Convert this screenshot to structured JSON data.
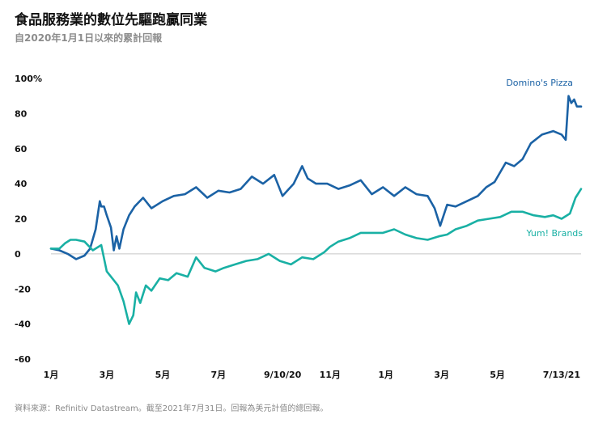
{
  "title": "食品服務業的數位先驅跑贏同業",
  "subtitle": "自2020年1月1日以來的累計回報",
  "source": "資料來源：Refinitiv Datastream。截至2021年7月31日。回報為美元計值的總回報。",
  "chart_data": {
    "type": "line",
    "y_tick_labels": [
      "100%",
      "80",
      "60",
      "40",
      "20",
      "0",
      "-20",
      "-40",
      "-60"
    ],
    "y_tick_values": [
      100,
      80,
      60,
      40,
      20,
      0,
      -20,
      -40,
      -60
    ],
    "ylim": [
      -60,
      100
    ],
    "xlim": [
      0,
      19
    ],
    "x_tick_labels": [
      "1月",
      "3月",
      "5月",
      "7月",
      "9/10/20",
      "11月",
      "1月",
      "3月",
      "5月",
      "7/13/21"
    ],
    "x_tick_positions": [
      0,
      2,
      4,
      6,
      8.3,
      10,
      12,
      14,
      16,
      18.3
    ],
    "x_unit": "months since 2020-01-01",
    "grid": false,
    "zero_line": true,
    "series": [
      {
        "name": "Domino's Pizza",
        "color": "#1b62a5",
        "x": [
          0,
          0.3,
          0.6,
          0.9,
          1.2,
          1.4,
          1.6,
          1.75,
          1.8,
          1.9,
          2.0,
          2.15,
          2.25,
          2.35,
          2.45,
          2.6,
          2.8,
          3.0,
          3.3,
          3.6,
          4.0,
          4.4,
          4.8,
          5.2,
          5.6,
          6.0,
          6.4,
          6.8,
          7.2,
          7.6,
          8.0,
          8.3,
          8.7,
          9.0,
          9.2,
          9.5,
          9.9,
          10.3,
          10.7,
          11.1,
          11.5,
          11.9,
          12.3,
          12.7,
          13.1,
          13.5,
          13.75,
          13.95,
          14.2,
          14.5,
          14.9,
          15.3,
          15.6,
          15.9,
          16.3,
          16.6,
          16.9,
          17.2,
          17.6,
          18.0,
          18.3,
          18.45,
          18.55,
          18.65,
          18.75,
          18.85,
          18.95,
          19.0
        ],
        "y": [
          3,
          2,
          0,
          -3,
          -1,
          3,
          14,
          30,
          27,
          27,
          22,
          15,
          2,
          10,
          3,
          14,
          22,
          27,
          32,
          26,
          30,
          33,
          34,
          38,
          32,
          36,
          35,
          37,
          44,
          40,
          45,
          33,
          40,
          50,
          43,
          40,
          40,
          37,
          39,
          42,
          34,
          38,
          33,
          38,
          34,
          33,
          26,
          16,
          28,
          27,
          30,
          33,
          38,
          41,
          52,
          50,
          54,
          63,
          68,
          70,
          68,
          65,
          90,
          86,
          88,
          84,
          84,
          84
        ]
      },
      {
        "name": "Yum! Brands",
        "color": "#19b0a4",
        "x": [
          0,
          0.3,
          0.5,
          0.7,
          0.9,
          1.2,
          1.5,
          1.8,
          2.0,
          2.2,
          2.4,
          2.6,
          2.8,
          2.95,
          3.05,
          3.2,
          3.4,
          3.6,
          3.9,
          4.2,
          4.5,
          4.9,
          5.2,
          5.5,
          5.9,
          6.2,
          6.6,
          7.0,
          7.4,
          7.8,
          8.2,
          8.6,
          9.0,
          9.4,
          9.8,
          10.0,
          10.3,
          10.7,
          11.1,
          11.5,
          11.9,
          12.3,
          12.7,
          13.1,
          13.5,
          13.9,
          14.2,
          14.5,
          14.9,
          15.3,
          15.7,
          16.1,
          16.5,
          16.9,
          17.3,
          17.7,
          18.0,
          18.3,
          18.6,
          18.8,
          19.0
        ],
        "y": [
          3,
          3,
          6,
          8,
          8,
          7,
          2,
          5,
          -10,
          -14,
          -18,
          -27,
          -40,
          -35,
          -22,
          -28,
          -18,
          -21,
          -14,
          -15,
          -11,
          -13,
          -2,
          -8,
          -10,
          -8,
          -6,
          -4,
          -3,
          0,
          -4,
          -6,
          -2,
          -3,
          1,
          4,
          7,
          9,
          12,
          12,
          12,
          14,
          11,
          9,
          8,
          10,
          11,
          14,
          16,
          19,
          20,
          21,
          24,
          24,
          22,
          21,
          22,
          20,
          23,
          32,
          37
        ]
      }
    ]
  }
}
